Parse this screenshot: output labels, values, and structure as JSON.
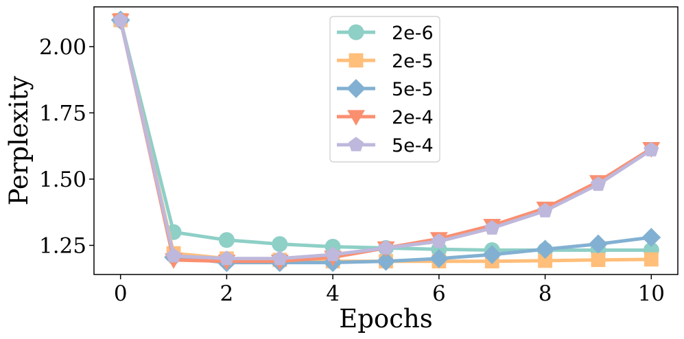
{
  "chart_data": {
    "type": "line",
    "title": "",
    "xlabel": "Epochs",
    "ylabel": "Perplexity",
    "xlim": [
      -0.5,
      10.5
    ],
    "ylim": [
      1.14,
      2.15
    ],
    "xticks": [
      0,
      2,
      4,
      6,
      8,
      10
    ],
    "xtick_labels": [
      "0",
      "2",
      "4",
      "6",
      "8",
      "10"
    ],
    "yticks": [
      1.25,
      1.5,
      1.75,
      2.0
    ],
    "ytick_labels": [
      "1.25",
      "1.50",
      "1.75",
      "2.00"
    ],
    "grid": false,
    "legend_position": "top-center",
    "x": [
      0,
      1,
      2,
      3,
      4,
      5,
      6,
      7,
      8,
      9,
      10
    ],
    "series": [
      {
        "name": "2e-6",
        "color": "#8ecfc6",
        "marker": "circle",
        "values": [
          2.1,
          1.3,
          1.27,
          1.255,
          1.245,
          1.24,
          1.235,
          1.232,
          1.232,
          1.232,
          1.232
        ]
      },
      {
        "name": "2e-5",
        "color": "#ffbe7a",
        "marker": "square",
        "values": [
          2.1,
          1.22,
          1.2,
          1.195,
          1.19,
          1.19,
          1.19,
          1.19,
          1.192,
          1.195,
          1.197
        ]
      },
      {
        "name": "5e-5",
        "color": "#82b0d2",
        "marker": "diamond",
        "values": [
          2.1,
          1.205,
          1.185,
          1.185,
          1.185,
          1.19,
          1.2,
          1.215,
          1.235,
          1.255,
          1.28
        ]
      },
      {
        "name": "2e-4",
        "color": "#fa8f70",
        "marker": "triangle-down",
        "values": [
          2.1,
          1.195,
          1.19,
          1.19,
          1.205,
          1.24,
          1.275,
          1.325,
          1.39,
          1.49,
          1.615
        ]
      },
      {
        "name": "5e-4",
        "color": "#beb8dc",
        "marker": "pentagon",
        "values": [
          2.1,
          1.21,
          1.2,
          1.2,
          1.215,
          1.24,
          1.265,
          1.315,
          1.38,
          1.48,
          1.61
        ]
      }
    ]
  }
}
